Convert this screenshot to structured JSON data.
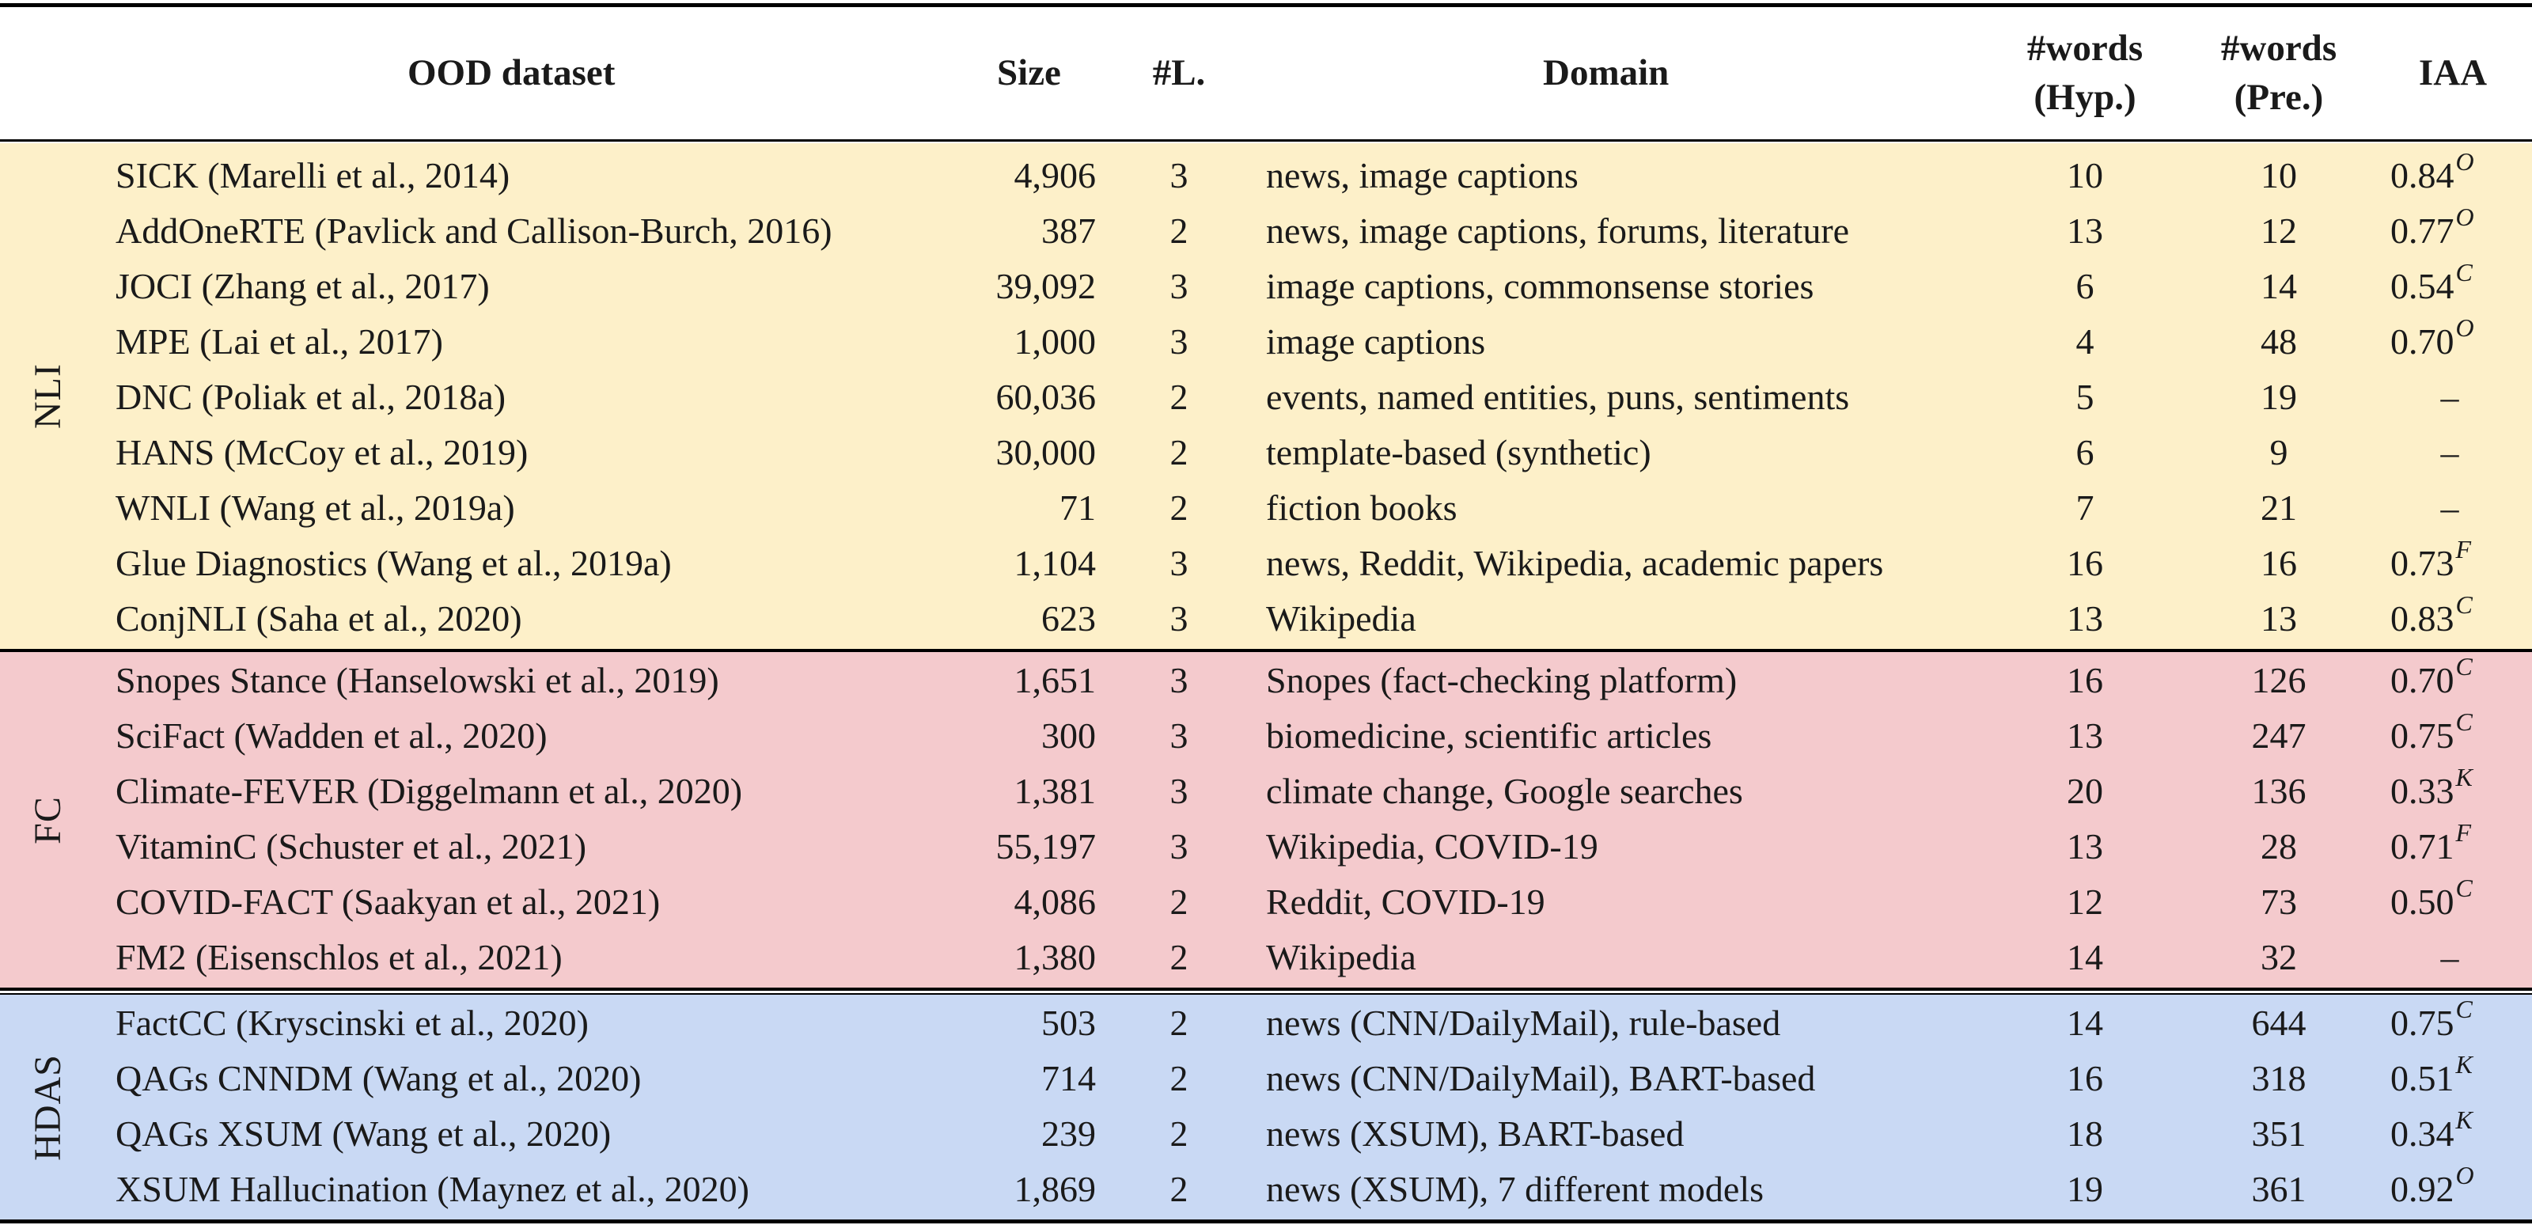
{
  "colors": {
    "nli": "#fdf0c9",
    "fc": "#f4cacd",
    "hdas": "#c9d9f4"
  },
  "header": {
    "dataset": "OOD dataset",
    "size": "Size",
    "labels": "#L.",
    "domain": "Domain",
    "hyp_line1": "#words",
    "hyp_line2": "(Hyp.)",
    "pre_line1": "#words",
    "pre_line2": "(Pre.)",
    "iaa": "IAA"
  },
  "groups": [
    {
      "label": "NLI",
      "rows": [
        {
          "name": "SICK (Marelli et al., 2014)",
          "size": "4,906",
          "labels": "3",
          "domain": "news, image captions",
          "hyp": "10",
          "pre": "10",
          "iaa": "0.84",
          "iaa_sup": "O"
        },
        {
          "name": "AddOneRTE (Pavlick and Callison-Burch, 2016)",
          "size": "387",
          "labels": "2",
          "domain": "news, image captions, forums, literature",
          "hyp": "13",
          "pre": "12",
          "iaa": "0.77",
          "iaa_sup": "O"
        },
        {
          "name": "JOCI (Zhang et al., 2017)",
          "size": "39,092",
          "labels": "3",
          "domain": "image captions, commonsense stories",
          "hyp": "6",
          "pre": "14",
          "iaa": "0.54",
          "iaa_sup": "C"
        },
        {
          "name": "MPE (Lai et al., 2017)",
          "size": "1,000",
          "labels": "3",
          "domain": "image captions",
          "hyp": "4",
          "pre": "48",
          "iaa": "0.70",
          "iaa_sup": "O"
        },
        {
          "name": "DNC (Poliak et al., 2018a)",
          "size": "60,036",
          "labels": "2",
          "domain": "events, named entities, puns, sentiments",
          "hyp": "5",
          "pre": "19",
          "iaa": "–",
          "iaa_sup": ""
        },
        {
          "name": "HANS (McCoy et al., 2019)",
          "size": "30,000",
          "labels": "2",
          "domain": "template-based (synthetic)",
          "hyp": "6",
          "pre": "9",
          "iaa": "–",
          "iaa_sup": ""
        },
        {
          "name": "WNLI (Wang et al., 2019a)",
          "size": "71",
          "labels": "2",
          "domain": "fiction books",
          "hyp": "7",
          "pre": "21",
          "iaa": "–",
          "iaa_sup": ""
        },
        {
          "name": "Glue Diagnostics (Wang et al., 2019a)",
          "size": "1,104",
          "labels": "3",
          "domain": "news, Reddit, Wikipedia, academic papers",
          "hyp": "16",
          "pre": "16",
          "iaa": "0.73",
          "iaa_sup": "F"
        },
        {
          "name": "ConjNLI (Saha et al., 2020)",
          "size": "623",
          "labels": "3",
          "domain": "Wikipedia",
          "hyp": "13",
          "pre": "13",
          "iaa": "0.83",
          "iaa_sup": "C"
        }
      ]
    },
    {
      "label": "FC",
      "rows": [
        {
          "name": "Snopes Stance (Hanselowski et al., 2019)",
          "size": "1,651",
          "labels": "3",
          "domain": "Snopes (fact-checking platform)",
          "hyp": "16",
          "pre": "126",
          "iaa": "0.70",
          "iaa_sup": "C"
        },
        {
          "name": "SciFact (Wadden et al., 2020)",
          "size": "300",
          "labels": "3",
          "domain": "biomedicine, scientific articles",
          "hyp": "13",
          "pre": "247",
          "iaa": "0.75",
          "iaa_sup": "C"
        },
        {
          "name": "Climate-FEVER (Diggelmann et al., 2020)",
          "size": "1,381",
          "labels": "3",
          "domain": "climate change, Google searches",
          "hyp": "20",
          "pre": "136",
          "iaa": "0.33",
          "iaa_sup": "K"
        },
        {
          "name": "VitaminC (Schuster et al., 2021)",
          "size": "55,197",
          "labels": "3",
          "domain": "Wikipedia, COVID-19",
          "hyp": "13",
          "pre": "28",
          "iaa": "0.71",
          "iaa_sup": "F"
        },
        {
          "name": "COVID-FACT (Saakyan et al., 2021)",
          "size": "4,086",
          "labels": "2",
          "domain": "Reddit, COVID-19",
          "hyp": "12",
          "pre": "73",
          "iaa": "0.50",
          "iaa_sup": "C"
        },
        {
          "name": "FM2 (Eisenschlos et al., 2021)",
          "size": "1,380",
          "labels": "2",
          "domain": "Wikipedia",
          "hyp": "14",
          "pre": "32",
          "iaa": "–",
          "iaa_sup": ""
        }
      ]
    },
    {
      "label": "HDAS",
      "rows": [
        {
          "name": "FactCC (Kryscinski et al., 2020)",
          "size": "503",
          "labels": "2",
          "domain": "news (CNN/DailyMail), rule-based",
          "hyp": "14",
          "pre": "644",
          "iaa": "0.75",
          "iaa_sup": "C"
        },
        {
          "name": "QAGs CNNDM (Wang et al., 2020)",
          "size": "714",
          "labels": "2",
          "domain": "news (CNN/DailyMail), BART-based",
          "hyp": "16",
          "pre": "318",
          "iaa": "0.51",
          "iaa_sup": "K"
        },
        {
          "name": "QAGs XSUM (Wang et al., 2020)",
          "size": "239",
          "labels": "2",
          "domain": "news (XSUM), BART-based",
          "hyp": "18",
          "pre": "351",
          "iaa": "0.34",
          "iaa_sup": "K"
        },
        {
          "name": "XSUM Hallucination (Maynez et al., 2020)",
          "size": "1,869",
          "labels": "2",
          "domain": "news (XSUM), 7 different models",
          "hyp": "19",
          "pre": "361",
          "iaa": "0.92",
          "iaa_sup": "O"
        }
      ]
    }
  ]
}
